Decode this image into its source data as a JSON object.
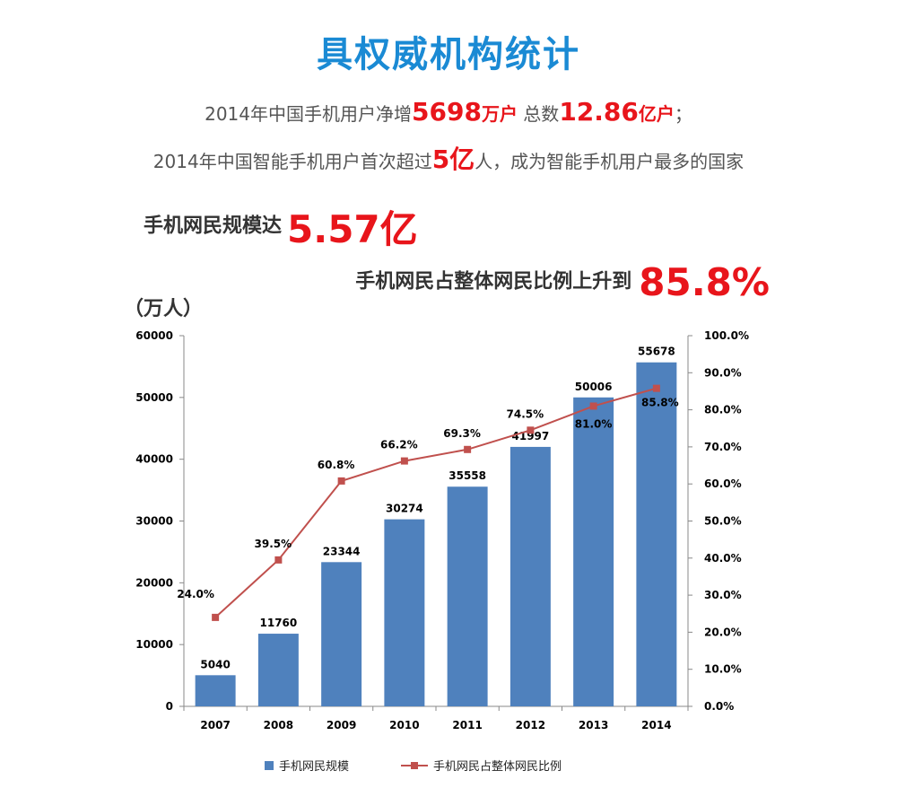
{
  "header": {
    "title": "具权威机构统计",
    "line1": {
      "pre": "2014年中国手机用户净增",
      "num1": "5698",
      "unit1": "万户",
      "mid": " 总数",
      "num2": "12.86",
      "unit2": "亿户",
      "post": "；"
    },
    "line2": {
      "pre": "2014年中国智能手机用户首次超过",
      "num": "5亿",
      "post": "人，成为智能手机用户最多的国家"
    }
  },
  "stats": {
    "scale_label": "手机网民规模达",
    "scale_value": "5.57亿",
    "ratio_label": "手机网民占整体网民比例上升到",
    "ratio_value": "85.8%"
  },
  "chart_data": {
    "type": "bar",
    "y_unit": "（万人）",
    "categories": [
      "2007",
      "2008",
      "2009",
      "2010",
      "2011",
      "2012",
      "2013",
      "2014"
    ],
    "series": [
      {
        "name": "手机网民规模",
        "type": "bar",
        "axis": "left",
        "color": "#4f81bd",
        "values": [
          5040,
          11760,
          23344,
          30274,
          35558,
          41997,
          50006,
          55678
        ],
        "labels": [
          "5040",
          "11760",
          "23344",
          "30274",
          "35558",
          "41997",
          "50006",
          "55678"
        ]
      },
      {
        "name": "手机网民占整体网民比例",
        "type": "line",
        "axis": "right",
        "color": "#c0504d",
        "values": [
          24.0,
          39.5,
          60.8,
          66.2,
          69.3,
          74.5,
          81.0,
          85.8
        ],
        "labels": [
          "24.0%",
          "39.5%",
          "60.8%",
          "66.2%",
          "69.3%",
          "74.5%",
          "81.0%",
          "85.8%"
        ]
      }
    ],
    "ylim_left": [
      0,
      60000
    ],
    "ylim_right": [
      0,
      100
    ],
    "left_ticks": [
      "0",
      "10000",
      "20000",
      "30000",
      "40000",
      "50000",
      "60000"
    ],
    "right_ticks": [
      "0.0%",
      "10.0%",
      "20.0%",
      "30.0%",
      "40.0%",
      "50.0%",
      "60.0%",
      "70.0%",
      "80.0%",
      "90.0%",
      "100.0%"
    ],
    "grid": false,
    "legend_position": "bottom"
  }
}
